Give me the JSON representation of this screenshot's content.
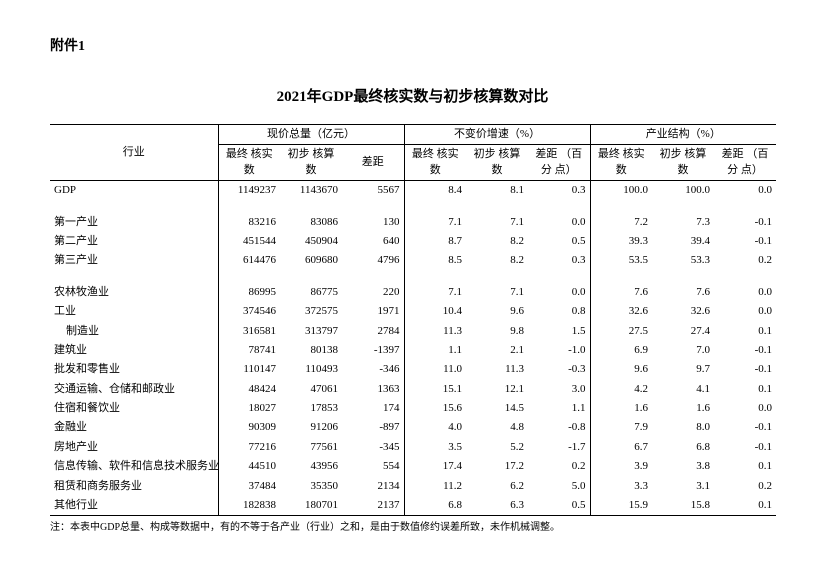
{
  "attachment_label": "附件1",
  "title": "2021年GDP最终核实数与初步核算数对比",
  "header": {
    "industry": "行业",
    "group1": "现价总量（亿元）",
    "group2": "不变价增速（%）",
    "group3": "产业结构（%）",
    "final": "最终\n核实数",
    "prelim": "初步\n核算数",
    "diff": "差距",
    "diff_pct": "差距\n（百分\n点）"
  },
  "rows": [
    {
      "label": "GDP",
      "v": [
        "1149237",
        "1143670",
        "5567",
        "8.4",
        "8.1",
        "0.3",
        "100.0",
        "100.0",
        "0.0"
      ]
    },
    {
      "spacer": true
    },
    {
      "label": "第一产业",
      "v": [
        "83216",
        "83086",
        "130",
        "7.1",
        "7.1",
        "0.0",
        "7.2",
        "7.3",
        "-0.1"
      ]
    },
    {
      "label": "第二产业",
      "v": [
        "451544",
        "450904",
        "640",
        "8.7",
        "8.2",
        "0.5",
        "39.3",
        "39.4",
        "-0.1"
      ]
    },
    {
      "label": "第三产业",
      "v": [
        "614476",
        "609680",
        "4796",
        "8.5",
        "8.2",
        "0.3",
        "53.5",
        "53.3",
        "0.2"
      ]
    },
    {
      "spacer": true
    },
    {
      "label": "农林牧渔业",
      "v": [
        "86995",
        "86775",
        "220",
        "7.1",
        "7.1",
        "0.0",
        "7.6",
        "7.6",
        "0.0"
      ]
    },
    {
      "label": "工业",
      "v": [
        "374546",
        "372575",
        "1971",
        "10.4",
        "9.6",
        "0.8",
        "32.6",
        "32.6",
        "0.0"
      ]
    },
    {
      "label": "制造业",
      "indent": 1,
      "v": [
        "316581",
        "313797",
        "2784",
        "11.3",
        "9.8",
        "1.5",
        "27.5",
        "27.4",
        "0.1"
      ]
    },
    {
      "label": "建筑业",
      "v": [
        "78741",
        "80138",
        "-1397",
        "1.1",
        "2.1",
        "-1.0",
        "6.9",
        "7.0",
        "-0.1"
      ]
    },
    {
      "label": "批发和零售业",
      "v": [
        "110147",
        "110493",
        "-346",
        "11.0",
        "11.3",
        "-0.3",
        "9.6",
        "9.7",
        "-0.1"
      ]
    },
    {
      "label": "交通运输、仓储和邮政业",
      "v": [
        "48424",
        "47061",
        "1363",
        "15.1",
        "12.1",
        "3.0",
        "4.2",
        "4.1",
        "0.1"
      ]
    },
    {
      "label": "住宿和餐饮业",
      "v": [
        "18027",
        "17853",
        "174",
        "15.6",
        "14.5",
        "1.1",
        "1.6",
        "1.6",
        "0.0"
      ]
    },
    {
      "label": "金融业",
      "v": [
        "90309",
        "91206",
        "-897",
        "4.0",
        "4.8",
        "-0.8",
        "7.9",
        "8.0",
        "-0.1"
      ]
    },
    {
      "label": "房地产业",
      "v": [
        "77216",
        "77561",
        "-345",
        "3.5",
        "5.2",
        "-1.7",
        "6.7",
        "6.8",
        "-0.1"
      ]
    },
    {
      "label": "信息传输、软件和信息技术服务业",
      "v": [
        "44510",
        "43956",
        "554",
        "17.4",
        "17.2",
        "0.2",
        "3.9",
        "3.8",
        "0.1"
      ]
    },
    {
      "label": "租赁和商务服务业",
      "v": [
        "37484",
        "35350",
        "2134",
        "11.2",
        "6.2",
        "5.0",
        "3.3",
        "3.1",
        "0.2"
      ]
    },
    {
      "label": "其他行业",
      "v": [
        "182838",
        "180701",
        "2137",
        "6.8",
        "6.3",
        "0.5",
        "15.9",
        "15.8",
        "0.1"
      ]
    }
  ],
  "footnote": "注：本表中GDP总量、构成等数据中，有的不等于各产业（行业）之和，是由于数值修约误差所致，未作机械调整。",
  "colors": {
    "text": "#000000",
    "background": "#ffffff",
    "border": "#000000"
  }
}
